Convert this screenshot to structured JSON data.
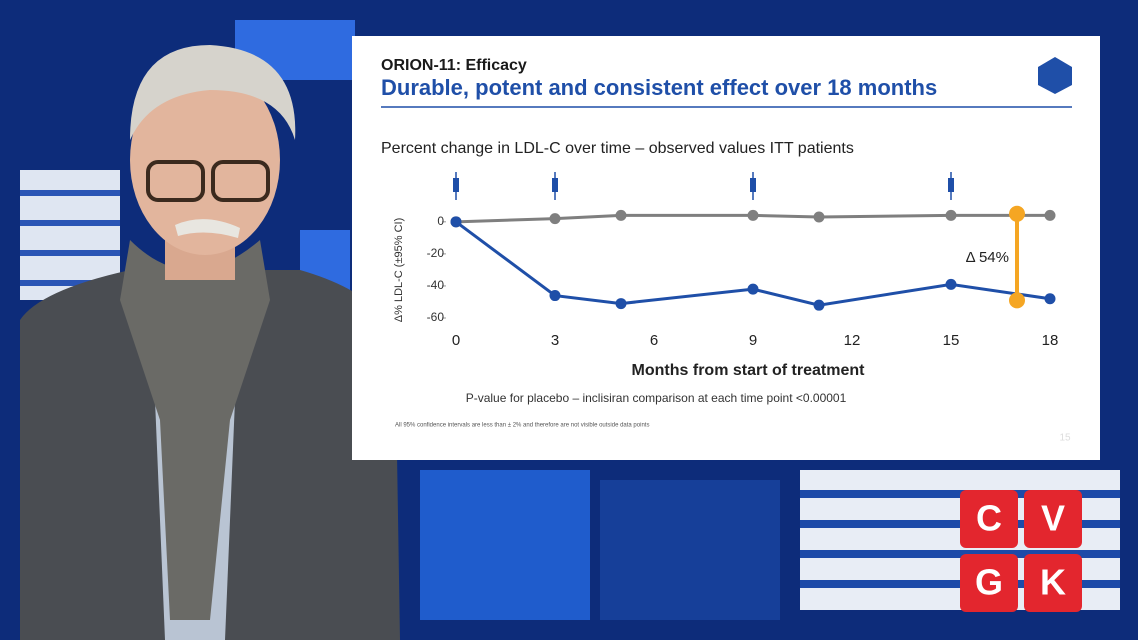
{
  "slide": {
    "kicker": "ORION-11: Efficacy",
    "headline": "Durable, potent and consistent effect over 18 months",
    "slide_number": "15",
    "footnote_p": "P-value for placebo – inclisiran comparison at each time point <0.00001",
    "footnote_ci": "All 95% confidence intervals are less than ± 2% and therefore are not visible outside data points"
  },
  "logo": {
    "letters": [
      "C",
      "V",
      "G",
      "K"
    ]
  },
  "chart_data": {
    "type": "line",
    "title": "Percent change in LDL-C over time – observed values ITT patients",
    "x_label": "Months from start of treatment",
    "y_label": "Δ% LDL-C (±95% CI)",
    "x": [
      0,
      3,
      5,
      9,
      11,
      15,
      18
    ],
    "series": [
      {
        "color": "#7f7f7f",
        "values": [
          0,
          2,
          4,
          4,
          3,
          4,
          4
        ]
      },
      {
        "color": "#1f4fa8",
        "values": [
          0,
          -46,
          -51,
          -42,
          -52,
          -39,
          -48
        ]
      }
    ],
    "xlim": [
      0,
      18
    ],
    "xticks": [
      0,
      3,
      6,
      9,
      12,
      15,
      18
    ],
    "ylim": [
      -60,
      8
    ],
    "yticks": [
      0,
      -20,
      -40,
      -60
    ],
    "dosing_months": [
      0,
      3,
      9,
      15
    ],
    "annotation": {
      "x": 17,
      "values": [
        5,
        -49
      ],
      "label": "Δ 54%",
      "color": "#f5a623"
    }
  }
}
